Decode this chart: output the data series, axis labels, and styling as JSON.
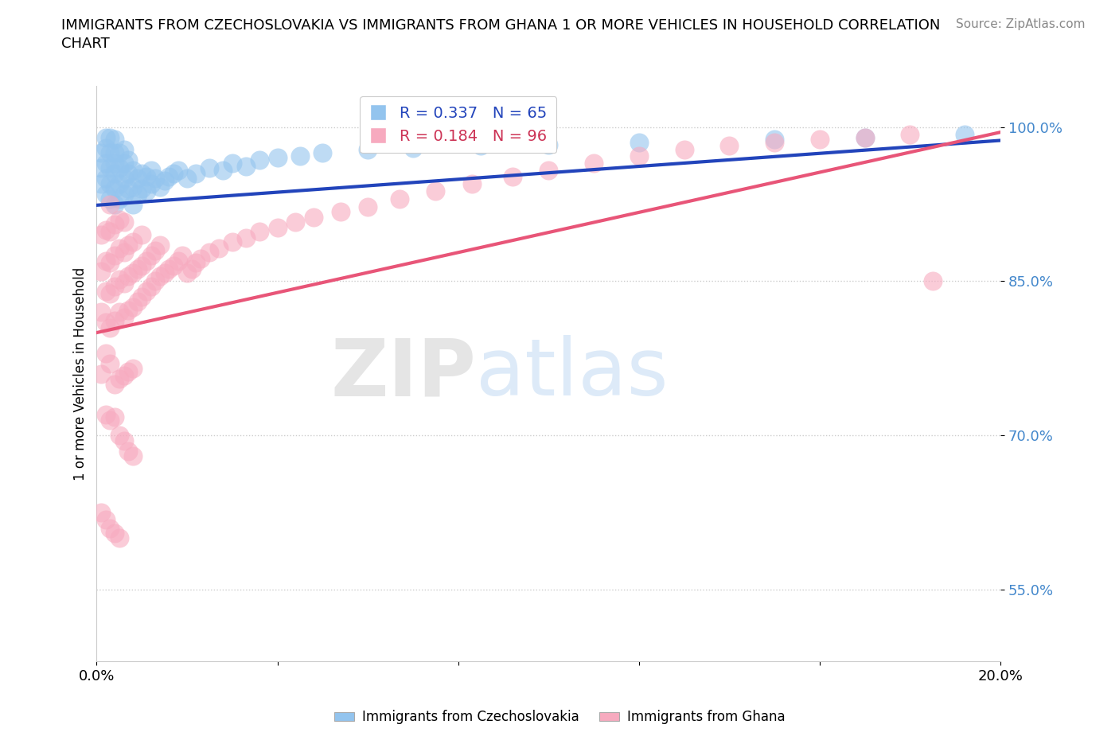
{
  "title_line1": "IMMIGRANTS FROM CZECHOSLOVAKIA VS IMMIGRANTS FROM GHANA 1 OR MORE VEHICLES IN HOUSEHOLD CORRELATION",
  "title_line2": "CHART",
  "source_text": "Source: ZipAtlas.com",
  "ylabel": "1 or more Vehicles in Household",
  "xmin": 0.0,
  "xmax": 0.2,
  "ymin": 0.48,
  "ymax": 1.04,
  "yticks": [
    0.55,
    0.7,
    0.85,
    1.0
  ],
  "ytick_labels": [
    "55.0%",
    "70.0%",
    "85.0%",
    "100.0%"
  ],
  "xticks": [
    0.0,
    0.04,
    0.08,
    0.12,
    0.16,
    0.2
  ],
  "xtick_labels": [
    "0.0%",
    "",
    "",
    "",
    "",
    "20.0%"
  ],
  "blue_R": 0.337,
  "blue_N": 65,
  "pink_R": 0.184,
  "pink_N": 96,
  "blue_color": "#93C4EE",
  "pink_color": "#F7AABF",
  "blue_line_color": "#2244BB",
  "pink_line_color": "#E85578",
  "watermark_zip": "ZIP",
  "watermark_atlas": "atlas",
  "legend_label_blue": "Immigrants from Czechoslovakia",
  "legend_label_pink": "Immigrants from Ghana",
  "blue_line_x0": 0.0,
  "blue_line_y0": 0.924,
  "blue_line_x1": 0.2,
  "blue_line_y1": 0.987,
  "pink_line_x0": 0.0,
  "pink_line_y0": 0.8,
  "pink_line_x1": 0.2,
  "pink_line_y1": 0.995,
  "blue_points_x": [
    0.001,
    0.001,
    0.001,
    0.002,
    0.002,
    0.002,
    0.002,
    0.002,
    0.003,
    0.003,
    0.003,
    0.003,
    0.003,
    0.004,
    0.004,
    0.004,
    0.004,
    0.004,
    0.004,
    0.005,
    0.005,
    0.005,
    0.005,
    0.006,
    0.006,
    0.006,
    0.006,
    0.007,
    0.007,
    0.007,
    0.008,
    0.008,
    0.008,
    0.009,
    0.009,
    0.01,
    0.01,
    0.011,
    0.011,
    0.012,
    0.012,
    0.013,
    0.014,
    0.015,
    0.016,
    0.017,
    0.018,
    0.02,
    0.022,
    0.025,
    0.028,
    0.03,
    0.033,
    0.036,
    0.04,
    0.045,
    0.05,
    0.06,
    0.07,
    0.085,
    0.1,
    0.12,
    0.15,
    0.17,
    0.192
  ],
  "blue_points_y": [
    0.945,
    0.96,
    0.975,
    0.935,
    0.95,
    0.965,
    0.98,
    0.99,
    0.93,
    0.945,
    0.96,
    0.975,
    0.99,
    0.925,
    0.94,
    0.955,
    0.965,
    0.975,
    0.988,
    0.93,
    0.945,
    0.96,
    0.975,
    0.935,
    0.95,
    0.965,
    0.978,
    0.94,
    0.955,
    0.968,
    0.925,
    0.942,
    0.958,
    0.935,
    0.95,
    0.94,
    0.955,
    0.938,
    0.952,
    0.945,
    0.958,
    0.95,
    0.942,
    0.948,
    0.952,
    0.955,
    0.958,
    0.95,
    0.955,
    0.96,
    0.958,
    0.965,
    0.962,
    0.968,
    0.97,
    0.972,
    0.975,
    0.978,
    0.98,
    0.982,
    0.983,
    0.985,
    0.988,
    0.99,
    0.993
  ],
  "pink_points_x": [
    0.001,
    0.001,
    0.001,
    0.002,
    0.002,
    0.002,
    0.002,
    0.003,
    0.003,
    0.003,
    0.003,
    0.003,
    0.004,
    0.004,
    0.004,
    0.004,
    0.005,
    0.005,
    0.005,
    0.005,
    0.006,
    0.006,
    0.006,
    0.006,
    0.007,
    0.007,
    0.007,
    0.008,
    0.008,
    0.008,
    0.009,
    0.009,
    0.01,
    0.01,
    0.01,
    0.011,
    0.011,
    0.012,
    0.012,
    0.013,
    0.013,
    0.014,
    0.014,
    0.015,
    0.016,
    0.017,
    0.018,
    0.019,
    0.02,
    0.021,
    0.022,
    0.023,
    0.025,
    0.027,
    0.03,
    0.033,
    0.036,
    0.04,
    0.044,
    0.048,
    0.054,
    0.06,
    0.067,
    0.075,
    0.083,
    0.092,
    0.1,
    0.11,
    0.12,
    0.13,
    0.14,
    0.15,
    0.16,
    0.17,
    0.18,
    0.001,
    0.002,
    0.003,
    0.004,
    0.005,
    0.006,
    0.007,
    0.008,
    0.002,
    0.003,
    0.004,
    0.005,
    0.006,
    0.007,
    0.008,
    0.001,
    0.002,
    0.003,
    0.004,
    0.005,
    0.185
  ],
  "pink_points_y": [
    0.82,
    0.86,
    0.895,
    0.81,
    0.84,
    0.87,
    0.9,
    0.805,
    0.838,
    0.868,
    0.898,
    0.925,
    0.812,
    0.845,
    0.875,
    0.905,
    0.82,
    0.852,
    0.882,
    0.91,
    0.815,
    0.848,
    0.878,
    0.908,
    0.822,
    0.855,
    0.885,
    0.825,
    0.858,
    0.888,
    0.83,
    0.862,
    0.835,
    0.865,
    0.895,
    0.84,
    0.87,
    0.845,
    0.875,
    0.85,
    0.88,
    0.855,
    0.885,
    0.858,
    0.862,
    0.865,
    0.87,
    0.875,
    0.858,
    0.862,
    0.868,
    0.872,
    0.878,
    0.882,
    0.888,
    0.892,
    0.898,
    0.902,
    0.908,
    0.912,
    0.918,
    0.922,
    0.93,
    0.938,
    0.945,
    0.952,
    0.958,
    0.965,
    0.972,
    0.978,
    0.982,
    0.985,
    0.988,
    0.99,
    0.993,
    0.76,
    0.78,
    0.77,
    0.75,
    0.755,
    0.758,
    0.762,
    0.765,
    0.72,
    0.715,
    0.718,
    0.7,
    0.695,
    0.685,
    0.68,
    0.625,
    0.618,
    0.61,
    0.605,
    0.6,
    0.85
  ]
}
